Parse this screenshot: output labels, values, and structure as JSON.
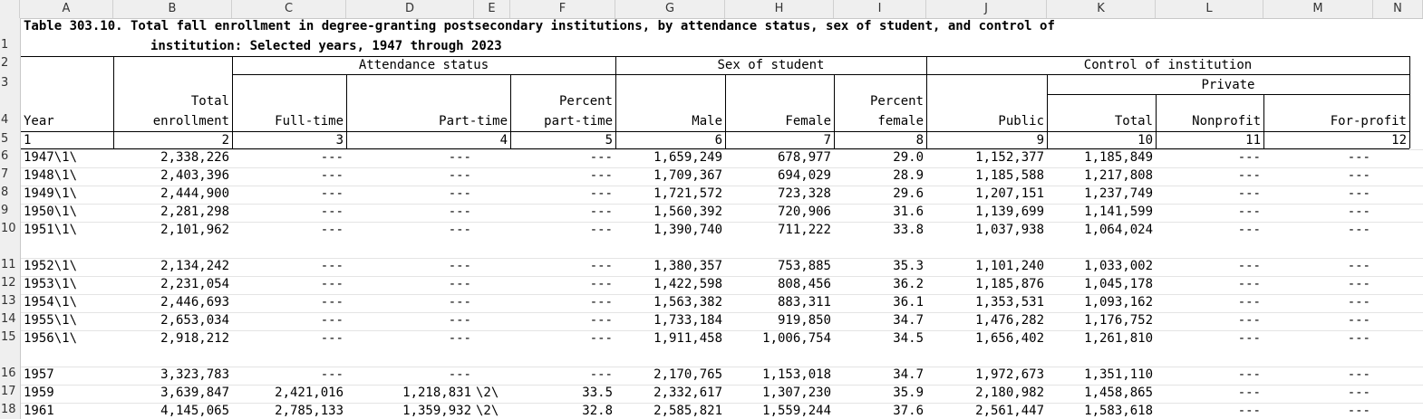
{
  "column_letters": [
    "A",
    "B",
    "C",
    "D",
    "E",
    "F",
    "G",
    "H",
    "I",
    "J",
    "K",
    "L",
    "M",
    "N"
  ],
  "row_numbers": [
    "1",
    "2",
    "3",
    "4",
    "5",
    "6",
    "7",
    "8",
    "9",
    "10",
    "11",
    "12",
    "13",
    "14",
    "15",
    "16",
    "17",
    "18"
  ],
  "title_line1": "Table 303.10. Total fall enrollment in degree-granting postsecondary institutions, by attendance status, sex of student, and control of",
  "title_line2": "institution: Selected years, 1947 through 2023",
  "group_headers": {
    "attendance": "Attendance status",
    "sex": "Sex of student",
    "control": "Control of institution",
    "private": "Private"
  },
  "headers": {
    "year": "Year",
    "total_top": "Total",
    "total_bottom": "enrollment",
    "fulltime": "Full-time",
    "parttime": "Part-time",
    "pct_part_top": "Percent",
    "pct_part_bottom": "part-time",
    "male": "Male",
    "female": "Female",
    "pct_female_top": "Percent",
    "pct_female_bottom": "female",
    "public": "Public",
    "private_total": "Total",
    "nonprofit": "Nonprofit",
    "forprofit": "For-profit"
  },
  "column_numbers": [
    "1",
    "2",
    "3",
    "4",
    "5",
    "6",
    "7",
    "8",
    "9",
    "10",
    "11",
    "12"
  ],
  "rows": [
    {
      "year": "1947\\1\\",
      "total": "2,338,226",
      "ft": "---",
      "pt": "---",
      "ptnote": "",
      "pctpt": "---",
      "male": "1,659,249",
      "female": "678,977",
      "pctf": "29.0",
      "public": "1,152,377",
      "privtotal": "1,185,849",
      "nonprofit": "---",
      "forprofit": "---"
    },
    {
      "year": "1948\\1\\",
      "total": "2,403,396",
      "ft": "---",
      "pt": "---",
      "ptnote": "",
      "pctpt": "---",
      "male": "1,709,367",
      "female": "694,029",
      "pctf": "28.9",
      "public": "1,185,588",
      "privtotal": "1,217,808",
      "nonprofit": "---",
      "forprofit": "---"
    },
    {
      "year": "1949\\1\\",
      "total": "2,444,900",
      "ft": "---",
      "pt": "---",
      "ptnote": "",
      "pctpt": "---",
      "male": "1,721,572",
      "female": "723,328",
      "pctf": "29.6",
      "public": "1,207,151",
      "privtotal": "1,237,749",
      "nonprofit": "---",
      "forprofit": "---"
    },
    {
      "year": "1950\\1\\",
      "total": "2,281,298",
      "ft": "---",
      "pt": "---",
      "ptnote": "",
      "pctpt": "---",
      "male": "1,560,392",
      "female": "720,906",
      "pctf": "31.6",
      "public": "1,139,699",
      "privtotal": "1,141,599",
      "nonprofit": "---",
      "forprofit": "---"
    },
    {
      "year": "1951\\1\\",
      "total": "2,101,962",
      "ft": "---",
      "pt": "---",
      "ptnote": "",
      "pctpt": "---",
      "male": "1,390,740",
      "female": "711,222",
      "pctf": "33.8",
      "public": "1,037,938",
      "privtotal": "1,064,024",
      "nonprofit": "---",
      "forprofit": "---"
    },
    {
      "year": "1952\\1\\",
      "total": "2,134,242",
      "ft": "---",
      "pt": "---",
      "ptnote": "",
      "pctpt": "---",
      "male": "1,380,357",
      "female": "753,885",
      "pctf": "35.3",
      "public": "1,101,240",
      "privtotal": "1,033,002",
      "nonprofit": "---",
      "forprofit": "---"
    },
    {
      "year": "1953\\1\\",
      "total": "2,231,054",
      "ft": "---",
      "pt": "---",
      "ptnote": "",
      "pctpt": "---",
      "male": "1,422,598",
      "female": "808,456",
      "pctf": "36.2",
      "public": "1,185,876",
      "privtotal": "1,045,178",
      "nonprofit": "---",
      "forprofit": "---"
    },
    {
      "year": "1954\\1\\",
      "total": "2,446,693",
      "ft": "---",
      "pt": "---",
      "ptnote": "",
      "pctpt": "---",
      "male": "1,563,382",
      "female": "883,311",
      "pctf": "36.1",
      "public": "1,353,531",
      "privtotal": "1,093,162",
      "nonprofit": "---",
      "forprofit": "---"
    },
    {
      "year": "1955\\1\\",
      "total": "2,653,034",
      "ft": "---",
      "pt": "---",
      "ptnote": "",
      "pctpt": "---",
      "male": "1,733,184",
      "female": "919,850",
      "pctf": "34.7",
      "public": "1,476,282",
      "privtotal": "1,176,752",
      "nonprofit": "---",
      "forprofit": "---"
    },
    {
      "year": "1956\\1\\",
      "total": "2,918,212",
      "ft": "---",
      "pt": "---",
      "ptnote": "",
      "pctpt": "---",
      "male": "1,911,458",
      "female": "1,006,754",
      "pctf": "34.5",
      "public": "1,656,402",
      "privtotal": "1,261,810",
      "nonprofit": "---",
      "forprofit": "---"
    },
    {
      "year": "1957",
      "total": "3,323,783",
      "ft": "---",
      "pt": "---",
      "ptnote": "",
      "pctpt": "---",
      "male": "2,170,765",
      "female": "1,153,018",
      "pctf": "34.7",
      "public": "1,972,673",
      "privtotal": "1,351,110",
      "nonprofit": "---",
      "forprofit": "---"
    },
    {
      "year": "1959",
      "total": "3,639,847",
      "ft": "2,421,016",
      "pt": "1,218,831",
      "ptnote": "\\2\\",
      "pctpt": "33.5",
      "male": "2,332,617",
      "female": "1,307,230",
      "pctf": "35.9",
      "public": "2,180,982",
      "privtotal": "1,458,865",
      "nonprofit": "---",
      "forprofit": "---"
    },
    {
      "year": "1961",
      "total": "4,145,065",
      "ft": "2,785,133",
      "pt": "1,359,932",
      "ptnote": "\\2\\",
      "pctpt": "32.8",
      "male": "2,585,821",
      "female": "1,559,244",
      "pctf": "37.6",
      "public": "2,561,447",
      "privtotal": "1,583,618",
      "nonprofit": "---",
      "forprofit": "---"
    }
  ]
}
